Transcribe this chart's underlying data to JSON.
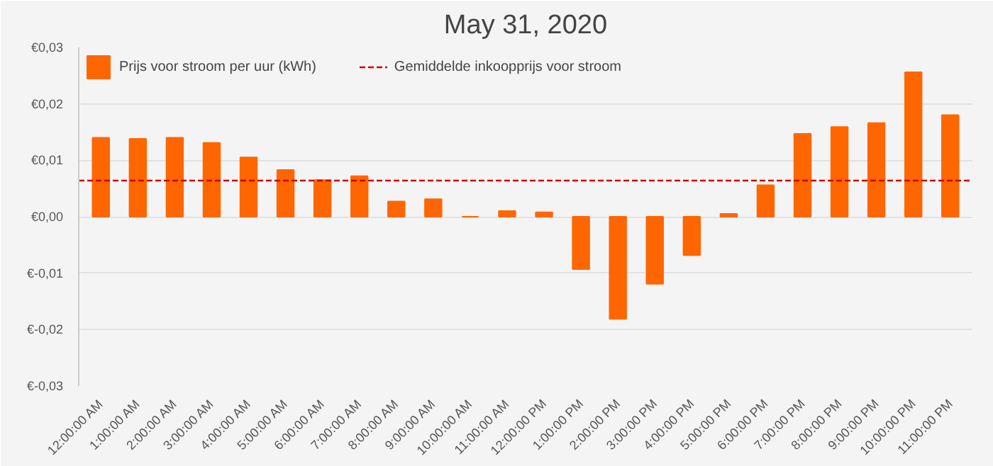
{
  "chart_data": {
    "type": "bar",
    "title": "May 31, 2020",
    "categories": [
      "12:00:00 AM",
      "1:00:00 AM",
      "2:00:00 AM",
      "3:00:00 AM",
      "4:00:00 AM",
      "5:00:00 AM",
      "6:00:00 AM",
      "7:00:00 AM",
      "8:00:00 AM",
      "9:00:00 AM",
      "10:00:00 AM",
      "11:00:00 AM",
      "12:00:00 PM",
      "1:00:00 PM",
      "2:00:00 PM",
      "3:00:00 PM",
      "4:00:00 PM",
      "5:00:00 PM",
      "6:00:00 PM",
      "7:00:00 PM",
      "8:00:00 PM",
      "9:00:00 PM",
      "10:00:00 PM",
      "11:00:00 PM"
    ],
    "series": [
      {
        "name": "Prijs voor stroom per uur (kWh)",
        "color": "#ff6600",
        "values": [
          0.014,
          0.0138,
          0.014,
          0.0131,
          0.0105,
          0.0083,
          0.0065,
          0.0072,
          0.0027,
          0.0031,
          0.0,
          0.001,
          0.0008,
          -0.0093,
          -0.0181,
          -0.0119,
          -0.0068,
          0.0005,
          0.0056,
          0.0147,
          0.0159,
          0.0166,
          0.0256,
          0.018
        ]
      }
    ],
    "ref_lines": [
      {
        "axis": "y",
        "value": 0.0064,
        "label": "Gemiddelde inkoopprijs voor stroom",
        "color": "#cc0000",
        "line_style": "dashed"
      }
    ],
    "ylim": [
      -0.03,
      0.03
    ],
    "yticks": [
      {
        "value": -0.03,
        "label": "€-0,03"
      },
      {
        "value": -0.02,
        "label": "€-0,02"
      },
      {
        "value": -0.01,
        "label": "€-0,01"
      },
      {
        "value": 0,
        "label": "€0,00"
      },
      {
        "value": 0.01,
        "label": "€0,01"
      },
      {
        "value": 0.02,
        "label": "€0,02"
      },
      {
        "value": 0.03,
        "label": "€0,03"
      }
    ],
    "grid": "y",
    "legend": "top left"
  }
}
